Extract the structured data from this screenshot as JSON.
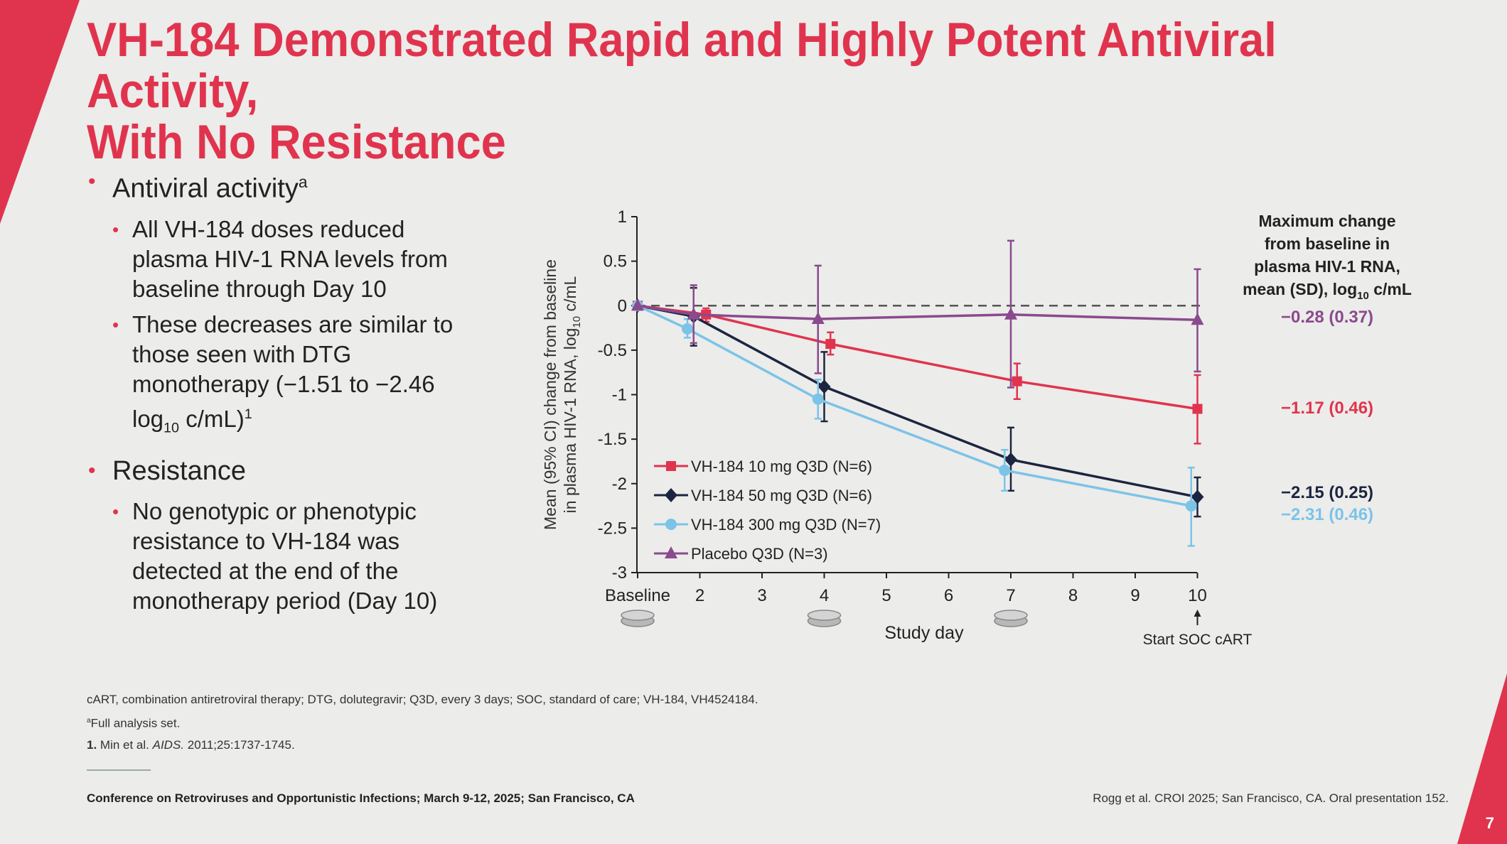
{
  "slide": {
    "title_line1": "VH-184 Demonstrated Rapid and Highly Potent Antiviral Activity,",
    "title_line2": "With No Resistance",
    "bullets": {
      "antiviral": "Antiviral activity",
      "antiviral_sup": "a",
      "sub1": "All VH-184 doses reduced plasma HIV-1 RNA levels from baseline through Day 10",
      "sub2_a": "These decreases are similar to those seen with DTG monotherapy (−1.51 to −2.46 log",
      "sub2_sub": "10",
      "sub2_b": " c/mL)",
      "sub2_sup": "1",
      "resistance": "Resistance",
      "sub3": "No genotypic or phenotypic resistance to VH-184 was detected at the end of the monotherapy period (Day 10)"
    },
    "footnotes": {
      "line1": "cART, combination antiretroviral therapy; DTG, dolutegravir; Q3D, every 3 days; SOC, standard of care; VH-184, VH4524184.",
      "line2_sup": "a",
      "line2": "Full analysis set.",
      "line3_num": "1.",
      "line3_a": " Min et al. ",
      "line3_journal": "AIDS.",
      "line3_b": " 2011;25:1737-1745."
    },
    "conference": "Conference on Retroviruses and Opportunistic Infections; March 9-12, 2025; San Francisco, CA",
    "reference": "Rogg et al. CROI 2025; San Francisco, CA. Oral presentation 152.",
    "page_number": "7",
    "colors": {
      "accent": "#e0344e",
      "background": "#ececea"
    }
  },
  "chart_data": {
    "type": "line",
    "xlabel": "Study day",
    "ylabel_line1": "Mean (95% CI) change from baseline",
    "ylabel_line2": "in plasma HIV-1 RNA, log",
    "ylabel_sub": "10",
    "ylabel_unit": " c/mL",
    "ylim": [
      -3,
      1
    ],
    "xlim": [
      1,
      10
    ],
    "x_ticks": [
      {
        "x": 1,
        "label": "Baseline"
      },
      {
        "x": 2,
        "label": "2"
      },
      {
        "x": 3,
        "label": "3"
      },
      {
        "x": 4,
        "label": "4"
      },
      {
        "x": 5,
        "label": "5"
      },
      {
        "x": 6,
        "label": "6"
      },
      {
        "x": 7,
        "label": "7"
      },
      {
        "x": 8,
        "label": "8"
      },
      {
        "x": 9,
        "label": "9"
      },
      {
        "x": 10,
        "label": "10"
      }
    ],
    "y_ticks": [
      {
        "y": 1,
        "label": "1"
      },
      {
        "y": 0.5,
        "label": "0.5"
      },
      {
        "y": 0,
        "label": "0"
      },
      {
        "y": -0.5,
        "label": "-0.5"
      },
      {
        "y": -1,
        "label": "-1"
      },
      {
        "y": -1.5,
        "label": "-1.5"
      },
      {
        "y": -2,
        "label": "-2"
      },
      {
        "y": -2.5,
        "label": "-2.5"
      },
      {
        "y": -3,
        "label": "-3"
      }
    ],
    "reference_line": 0,
    "dosing_days": [
      1,
      4,
      7
    ],
    "start_soc_label": "Start SOC cART",
    "start_soc_day": 10,
    "summary_title_line1": "Maximum change",
    "summary_title_line2": "from baseline in",
    "summary_title_line3": "plasma HIV-1 RNA,",
    "summary_title_line4a": "mean (SD), log",
    "summary_title_sub": "10",
    "summary_title_line4b": " c/mL",
    "legend_position": "bottom-left",
    "series": [
      {
        "name": "VH-184 10 mg Q3D (N=6)",
        "color": "#e0344e",
        "marker": "square",
        "x": [
          1,
          2.1,
          4.1,
          7.1,
          10
        ],
        "y": [
          0,
          -0.1,
          -0.43,
          -0.85,
          -1.16
        ],
        "ci_low": [
          0,
          -0.18,
          -0.55,
          -1.05,
          -1.55
        ],
        "ci_high": [
          0,
          -0.03,
          -0.3,
          -0.65,
          -0.78
        ],
        "summary": "−1.17 (0.46)"
      },
      {
        "name": "VH-184 50 mg Q3D (N=6)",
        "color": "#1c2540",
        "marker": "diamond",
        "x": [
          1,
          1.9,
          4,
          7,
          10
        ],
        "y": [
          0,
          -0.12,
          -0.91,
          -1.73,
          -2.15
        ],
        "ci_low": [
          0,
          -0.45,
          -1.3,
          -2.08,
          -2.37
        ],
        "ci_high": [
          0,
          0.2,
          -0.52,
          -1.37,
          -1.93
        ],
        "summary": "−2.15 (0.25)"
      },
      {
        "name": "VH-184 300 mg Q3D (N=7)",
        "color": "#7cc3e8",
        "marker": "circle",
        "x": [
          1,
          1.8,
          3.9,
          6.9,
          9.9
        ],
        "y": [
          0,
          -0.26,
          -1.05,
          -1.85,
          -2.25
        ],
        "ci_low": [
          0,
          -0.36,
          -1.27,
          -2.08,
          -2.7
        ],
        "ci_high": [
          0,
          -0.15,
          -0.83,
          -1.62,
          -1.82
        ],
        "summary": "−2.31 (0.46)"
      },
      {
        "name": "Placebo Q3D (N=3)",
        "color": "#8a4a8e",
        "marker": "triangle",
        "x": [
          1,
          1.9,
          3.9,
          7,
          10
        ],
        "y": [
          0,
          -0.1,
          -0.15,
          -0.1,
          -0.16
        ],
        "ci_low": [
          0,
          -0.42,
          -0.76,
          -0.92,
          -0.74
        ],
        "ci_high": [
          0,
          0.23,
          0.45,
          0.73,
          0.41
        ],
        "summary": "−0.28 (0.37)"
      }
    ]
  }
}
